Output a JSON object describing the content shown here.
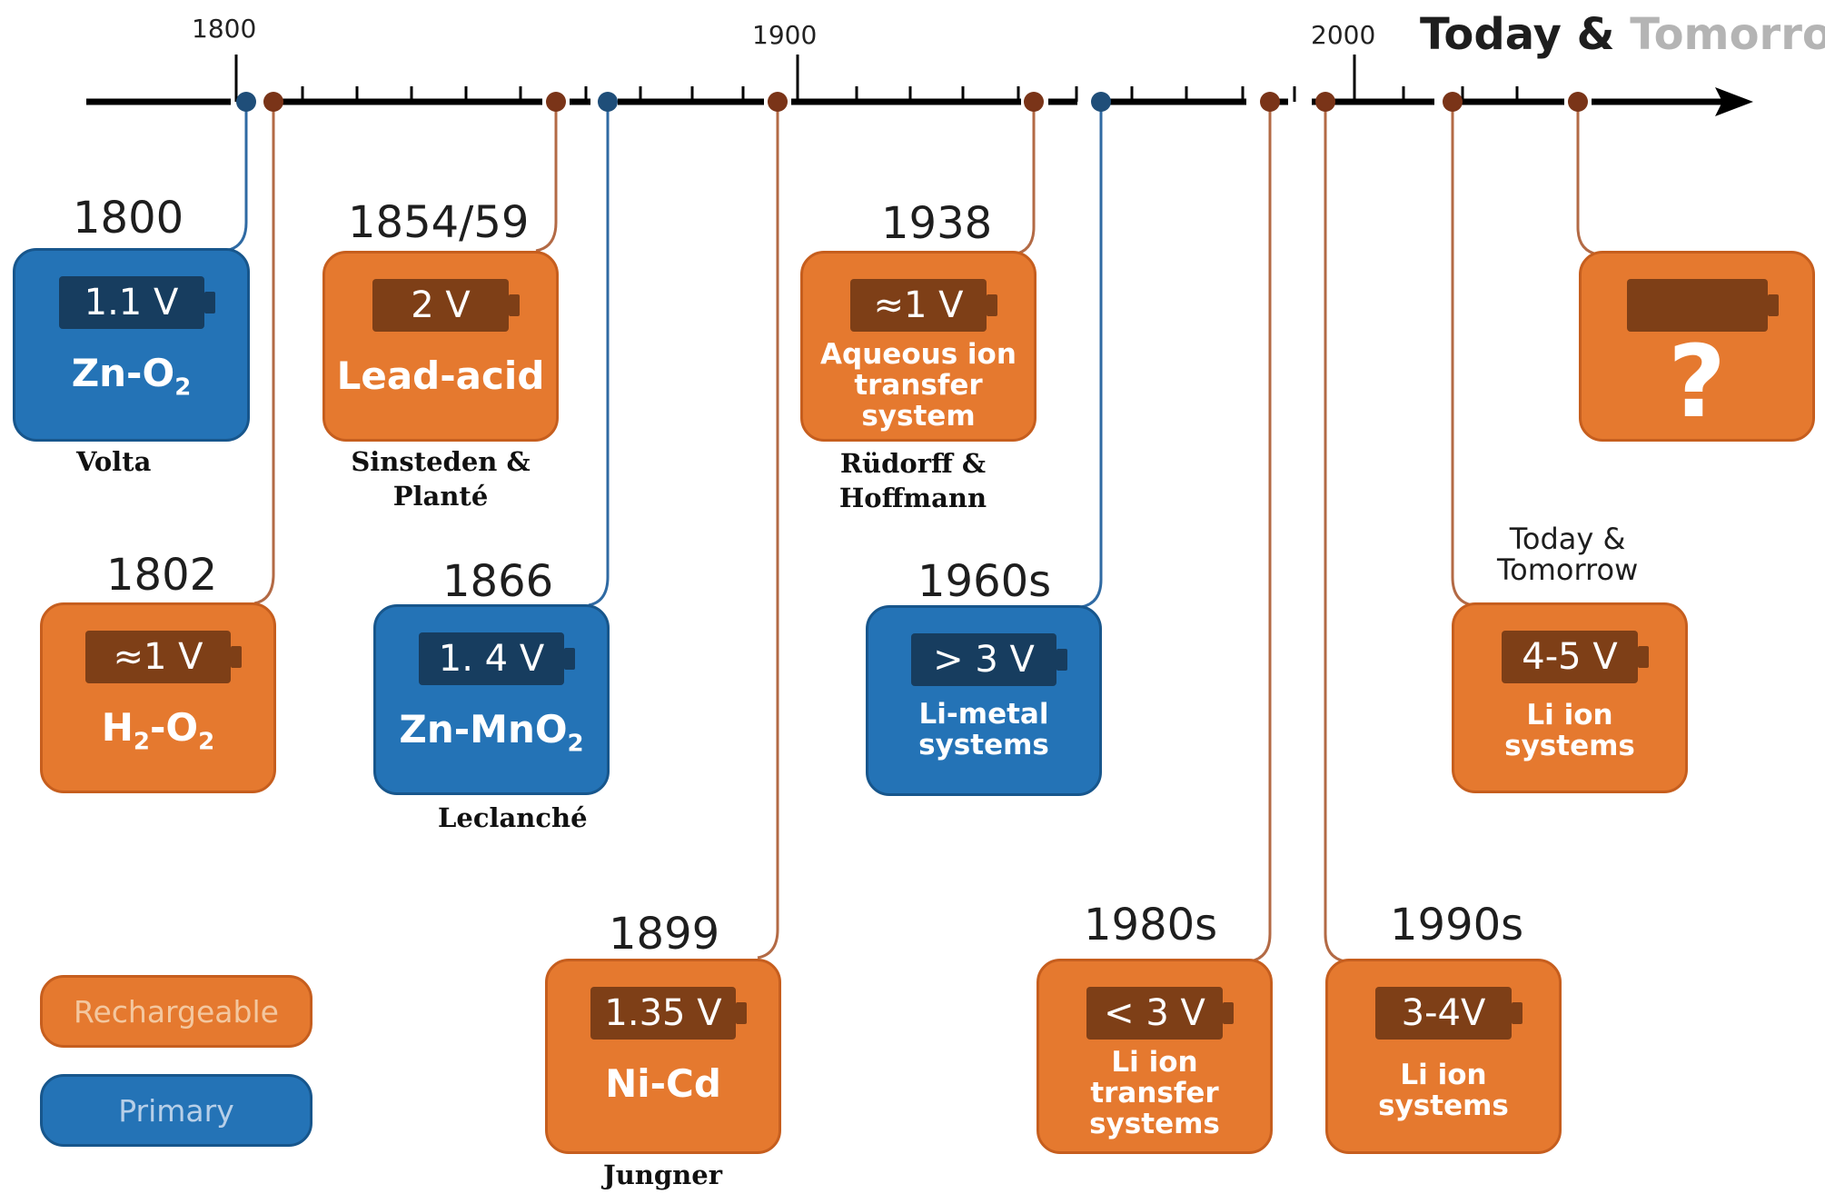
{
  "header": {
    "title_dark": "Today &",
    "title_light": "Tomorrow",
    "years": [
      "1800",
      "1900",
      "2000"
    ]
  },
  "legend": {
    "rechargeable": "Rechargeable",
    "primary": "Primary"
  },
  "cards": [
    {
      "year": "1800",
      "voltage": "1.1 V",
      "chemistry": "Zn-O",
      "sub": "2",
      "inventor": "Volta",
      "type": "Primary"
    },
    {
      "year": "1802",
      "voltage": "≈1 V",
      "chemistry_a": "H",
      "sub_a": "2",
      "chemistry_b": "-O",
      "sub_b": "2",
      "type": "Rechargeable"
    },
    {
      "year": "1854/59",
      "voltage": "2 V",
      "chemistry": "Lead-acid",
      "inventor_line1": "Sinsteden &",
      "inventor_line2": "Planté",
      "type": "Rechargeable"
    },
    {
      "year": "1866",
      "voltage": "1. 4 V",
      "chemistry": "Zn-MnO",
      "sub": "2",
      "inventor": "Leclanché",
      "type": "Primary"
    },
    {
      "year": "1899",
      "voltage": "1.35 V",
      "chemistry": "Ni-Cd",
      "inventor": "Jungner",
      "type": "Rechargeable"
    },
    {
      "year": "1938",
      "voltage": "≈1 V",
      "chemistry_lines": [
        "Aqueous ion",
        "transfer",
        "system"
      ],
      "inventor_line1": "Rüdorff &",
      "inventor_line2": "Hoffmann",
      "type": "Rechargeable"
    },
    {
      "year": "1960s",
      "voltage": "> 3 V",
      "chemistry_lines": [
        "Li-metal",
        "systems"
      ],
      "type": "Primary"
    },
    {
      "year": "1980s",
      "voltage": "< 3 V",
      "chemistry_lines": [
        "Li ion",
        "transfer",
        "systems"
      ],
      "type": "Rechargeable"
    },
    {
      "year": "1990s",
      "voltage": "3-4V",
      "chemistry_lines": [
        "Li ion",
        "systems"
      ],
      "type": "Rechargeable"
    },
    {
      "label_line1": "Today &",
      "label_line2": "Tomorrow",
      "voltage": "4-5 V",
      "chemistry_lines": [
        "Li ion",
        "systems"
      ],
      "type": "Rechargeable"
    },
    {
      "voltage": "",
      "chemistry": "?",
      "type": "Rechargeable"
    }
  ],
  "colors": {
    "rechargeable": "#e5792f",
    "primary": "#2473b6",
    "rechargeable_connector": "#b36a45",
    "primary_connector": "#2f6aa3"
  }
}
